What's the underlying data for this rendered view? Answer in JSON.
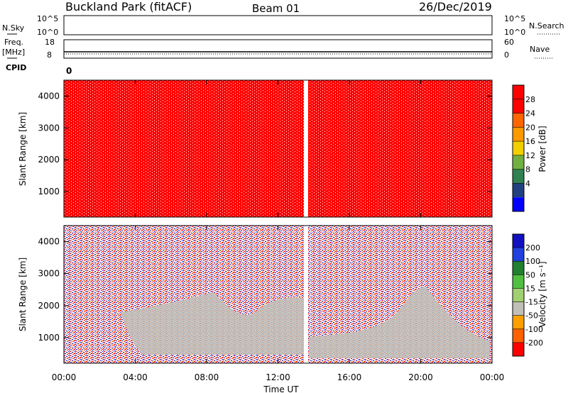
{
  "header": {
    "station": "Buckland Park (fitACF)",
    "beam": "Beam 01",
    "date": "26/Dec/2019"
  },
  "top_strip": {
    "nsky_label": "N.Sky",
    "nsky_ticks": [
      "10^5",
      "10^0"
    ],
    "nsearch_label": "N.Search",
    "nsearch_ticks": [
      "10^5",
      "10^0"
    ],
    "freq_label": "Freq.",
    "freq_unit": "[MHz]",
    "freq_ticks": [
      "18",
      "8"
    ],
    "nave_label": "Nave",
    "nave_ticks": [
      "60",
      "0"
    ],
    "cpid_label": "CPID",
    "cpid_value": "0"
  },
  "chart_data": [
    {
      "type": "heatmap",
      "panel": "power",
      "ylabel": "Slant Range [km]",
      "yticks": [
        "4000",
        "3000",
        "2000",
        "1000"
      ],
      "ylim": [
        200,
        4500
      ],
      "xlim": [
        "00:00",
        "24:00"
      ],
      "data_gap_ut": [
        13.5,
        13.75
      ],
      "colorbar": {
        "label": "Power [dB]",
        "ticks": [
          "28",
          "24",
          "20",
          "16",
          "12",
          "8",
          "4"
        ],
        "colors": [
          "#ff0000",
          "#ff0000",
          "#ff6600",
          "#ff9900",
          "#f0d000",
          "#70b040",
          "#308050",
          "#204080",
          "#0000ff"
        ]
      },
      "dominant_value": "28+ dB (saturated red) across nearly all ranges and times"
    },
    {
      "type": "heatmap",
      "panel": "velocity",
      "ylabel": "Slant Range [km]",
      "yticks": [
        "4000",
        "3000",
        "2000",
        "1000"
      ],
      "ylim": [
        200,
        4500
      ],
      "xlim": [
        "00:00",
        "24:00"
      ],
      "data_gap_ut": [
        13.5,
        13.75
      ],
      "colorbar": {
        "label": "Velocity [m s⁻¹]",
        "ticks": [
          "200",
          "100",
          "50",
          "15",
          "-15",
          "-50",
          "-100",
          "-200"
        ],
        "colors": [
          "#1010c0",
          "#2040e0",
          "#208030",
          "#50c040",
          "#a0d070",
          "#c0c0b8",
          "#ffa000",
          "#ff6000",
          "#ff0000"
        ]
      }
    }
  ],
  "x_axis": {
    "ticks": [
      "00:00",
      "04:00",
      "08:00",
      "12:00",
      "16:00",
      "20:00",
      "00:00"
    ],
    "label": "Time UT"
  }
}
